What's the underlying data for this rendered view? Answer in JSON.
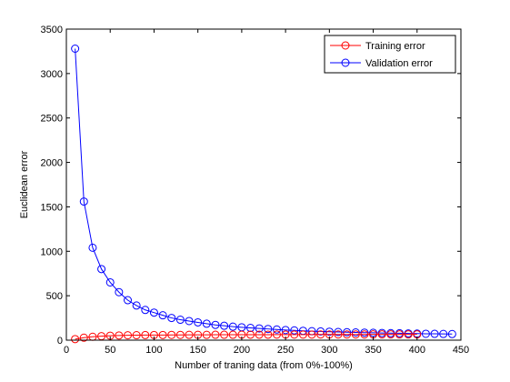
{
  "chart_data": {
    "type": "line",
    "xlabel": "Number of traning data (from 0%-100%)",
    "ylabel": "Euclidean error",
    "xlim": [
      0,
      450
    ],
    "ylim": [
      0,
      3500
    ],
    "xticks": [
      0,
      50,
      100,
      150,
      200,
      250,
      300,
      350,
      400,
      450
    ],
    "yticks": [
      0,
      500,
      1000,
      1500,
      2000,
      2500,
      3000,
      3500
    ],
    "legend_position": "top-right",
    "grid": false,
    "series": [
      {
        "name": "Training error",
        "color": "#ff0000",
        "marker": "circle",
        "x": [
          10,
          20,
          30,
          40,
          50,
          60,
          70,
          80,
          90,
          100,
          110,
          120,
          130,
          140,
          150,
          160,
          170,
          180,
          190,
          200,
          210,
          220,
          230,
          240,
          250,
          260,
          270,
          280,
          290,
          300,
          310,
          320,
          330,
          340,
          350,
          360,
          370,
          380,
          390,
          400
        ],
        "values": [
          12,
          28,
          38,
          45,
          50,
          53,
          55,
          56,
          57,
          58,
          58,
          59,
          59,
          60,
          60,
          60,
          61,
          61,
          61,
          62,
          62,
          62,
          62,
          63,
          63,
          63,
          63,
          63,
          64,
          64,
          64,
          64,
          64,
          64,
          65,
          65,
          65,
          65,
          65,
          65
        ]
      },
      {
        "name": "Validation error",
        "color": "#0000ff",
        "marker": "circle",
        "x": [
          10,
          20,
          30,
          40,
          50,
          60,
          70,
          80,
          90,
          100,
          110,
          120,
          130,
          140,
          150,
          160,
          170,
          180,
          190,
          200,
          210,
          220,
          230,
          240,
          250,
          260,
          270,
          280,
          290,
          300,
          310,
          320,
          330,
          340,
          350,
          360,
          370,
          380,
          390,
          400,
          410,
          420,
          430,
          440
        ],
        "values": [
          3280,
          1560,
          1040,
          800,
          650,
          540,
          450,
          390,
          340,
          310,
          280,
          250,
          230,
          215,
          200,
          185,
          172,
          162,
          152,
          145,
          138,
          132,
          126,
          120,
          114,
          110,
          105,
          101,
          98,
          95,
          92,
          89,
          87,
          85,
          83,
          81,
          79,
          78,
          76,
          74,
          72,
          71,
          70,
          69
        ]
      }
    ]
  }
}
